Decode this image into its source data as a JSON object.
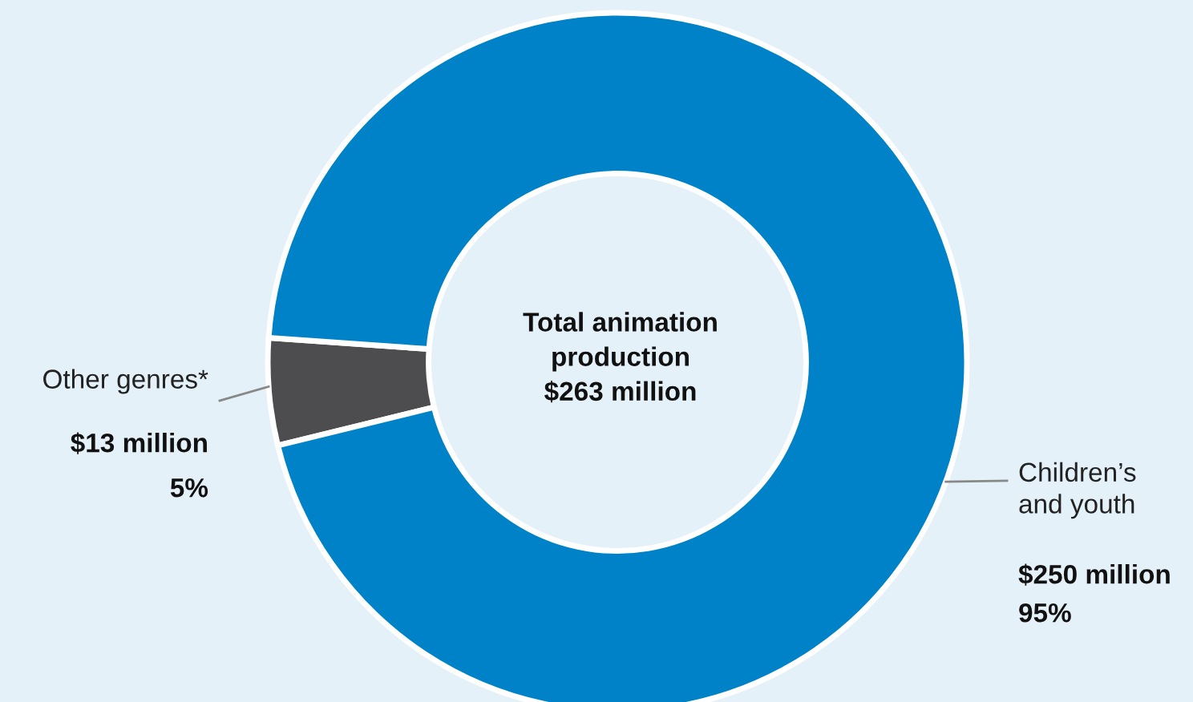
{
  "chart_data": {
    "type": "donut",
    "categories": [
      "Other genres*",
      "Children’s\nand youth"
    ],
    "values": [
      13,
      250
    ],
    "colors": [
      "#4d4d4f",
      "#0082c8"
    ],
    "value_labels": [
      "$13 million",
      "$250 million"
    ],
    "annotations": [
      "Total animation\nproduction\n$263 million",
      "5%",
      "95%"
    ],
    "legend": false
  }
}
